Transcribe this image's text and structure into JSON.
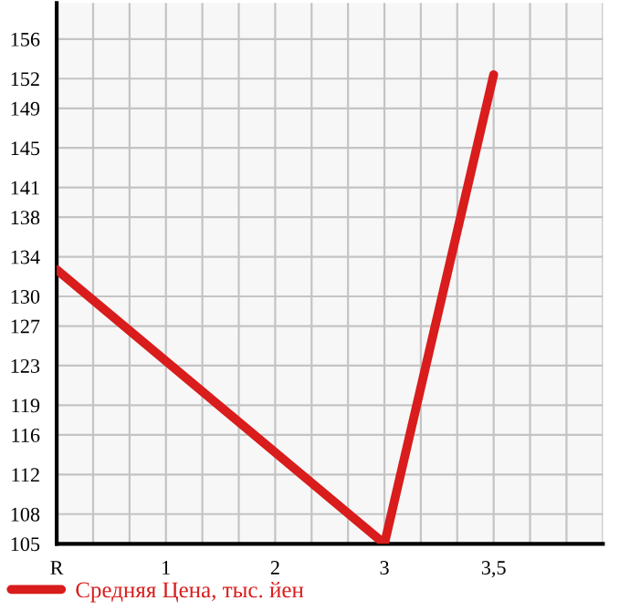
{
  "chart_data": {
    "type": "line",
    "categories": [
      "R",
      "1",
      "2",
      "3",
      "3,5",
      null
    ],
    "series": [
      {
        "name": "Средняя Цена, тыс. йен",
        "color": "#d91c1c",
        "values": [
          132.7,
          null,
          null,
          105,
          152.4,
          null
        ]
      }
    ],
    "ylim": [
      105,
      159.64
    ],
    "yticks": [
      105,
      108,
      112,
      116,
      119,
      123,
      127,
      130,
      134,
      138,
      141,
      145,
      149,
      152,
      156
    ],
    "grid": true,
    "legend": "bottom left",
    "marker": "none",
    "line_style": "solid"
  }
}
